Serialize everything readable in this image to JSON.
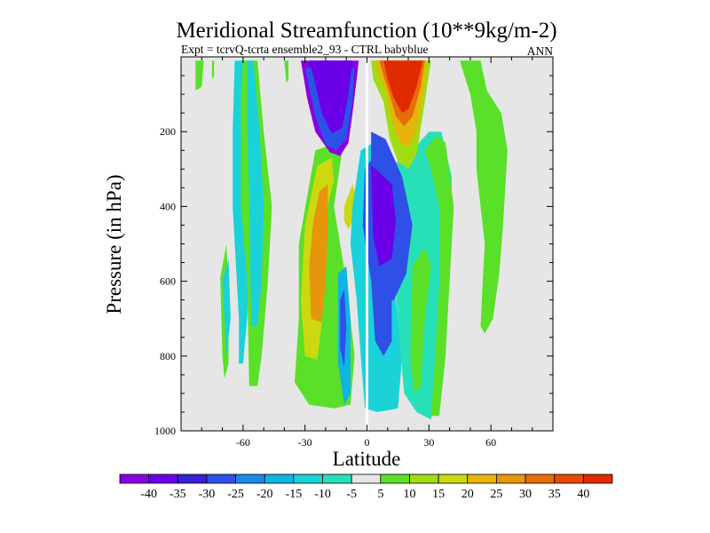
{
  "chart_data": {
    "type": "contour",
    "title": "Meridional Streamfunction (10**9kg/m-2)",
    "subtitle_left": "Expt = tcrvQ-tcrta ensemble2_93 - CTRL babyblue",
    "subtitle_right": "ANN",
    "xlabel": "Latitude",
    "ylabel": "Pressure (in hPa)",
    "xlim": [
      -90,
      90
    ],
    "ylim": [
      0,
      1000
    ],
    "y_inverted": true,
    "x_ticks": [
      -60,
      -30,
      0,
      30,
      60
    ],
    "x_tick_labels": [
      "-60",
      "-30",
      "0",
      "30",
      "60"
    ],
    "y_ticks": [
      200,
      400,
      600,
      800,
      1000
    ],
    "y_tick_labels": [
      "200",
      "400",
      "600",
      "800",
      "1000"
    ],
    "colorbar": {
      "labels": [
        "-40",
        "-35",
        "-30",
        "-25",
        "-20",
        "-15",
        "-10",
        "-5",
        "5",
        "10",
        "15",
        "20",
        "25",
        "30",
        "35",
        "40"
      ],
      "colors": [
        "#8a00e0",
        "#6a00e8",
        "#3a1ed8",
        "#2e50e6",
        "#1e88e8",
        "#10b4e0",
        "#1ad2d8",
        "#28e0b8",
        "#e6e6e6",
        "#5ae028",
        "#a2dc14",
        "#ccd810",
        "#e6b40a",
        "#e6960a",
        "#e66e06",
        "#e64a04",
        "#e02a00"
      ]
    },
    "background_color": "#e6e6e6",
    "regions": [
      {
        "name": "far-south-green-strip",
        "level": "5",
        "points": [
          [
            -83,
            10
          ],
          [
            -79,
            10
          ],
          [
            -80,
            80
          ],
          [
            -83,
            90
          ]
        ]
      },
      {
        "name": "south-green-sliver",
        "level": "5",
        "points": [
          [
            -75,
            10
          ],
          [
            -74,
            10
          ],
          [
            -74,
            50
          ],
          [
            -75,
            60
          ]
        ]
      },
      {
        "name": "south-cyan-column",
        "level": "-10",
        "points": [
          [
            -64,
            10
          ],
          [
            -59,
            10
          ],
          [
            -57,
            200
          ],
          [
            -56,
            400
          ],
          [
            -58,
            700
          ],
          [
            -60,
            820
          ],
          [
            -62,
            820
          ],
          [
            -62,
            700
          ],
          [
            -65,
            400
          ],
          [
            -65,
            200
          ]
        ]
      },
      {
        "name": "south-green-column",
        "level": "5",
        "points": [
          [
            -60,
            10
          ],
          [
            -53,
            10
          ],
          [
            -50,
            200
          ],
          [
            -46,
            400
          ],
          [
            -48,
            600
          ],
          [
            -51,
            800
          ],
          [
            -53,
            880
          ],
          [
            -57,
            880
          ],
          [
            -58,
            600
          ],
          [
            -61,
            400
          ],
          [
            -61,
            100
          ]
        ]
      },
      {
        "name": "south-cyan-inner",
        "level": "-10",
        "points": [
          [
            -58,
            10
          ],
          [
            -55,
            10
          ],
          [
            -52,
            200
          ],
          [
            -50,
            400
          ],
          [
            -51,
            600
          ],
          [
            -53,
            720
          ],
          [
            -56,
            720
          ],
          [
            -57,
            400
          ],
          [
            -58,
            150
          ]
        ]
      },
      {
        "name": "far-south-green-bottom",
        "level": "5",
        "points": [
          [
            -71,
            590
          ],
          [
            -68,
            500
          ],
          [
            -67,
            650
          ],
          [
            -67,
            820
          ],
          [
            -69,
            860
          ],
          [
            -70,
            800
          ]
        ]
      },
      {
        "name": "south-cyan-bottom",
        "level": "-10",
        "points": [
          [
            -70,
            600
          ],
          [
            -67,
            540
          ],
          [
            -66,
            700
          ],
          [
            -68,
            800
          ]
        ]
      },
      {
        "name": "mid-north-green-sliver",
        "level": "5",
        "points": [
          [
            -40,
            10
          ],
          [
            -38,
            10
          ],
          [
            -38,
            60
          ],
          [
            -39,
            70
          ]
        ]
      },
      {
        "name": "south-descending-green",
        "level": "5",
        "points": [
          [
            -25,
            250
          ],
          [
            -17,
            235
          ],
          [
            -12,
            250
          ],
          [
            -16,
            400
          ],
          [
            -10,
            600
          ],
          [
            -6,
            800
          ],
          [
            -8,
            930
          ],
          [
            -16,
            940
          ],
          [
            -28,
            930
          ],
          [
            -35,
            870
          ],
          [
            -33,
            700
          ],
          [
            -33,
            500
          ]
        ]
      },
      {
        "name": "south-descending-yellow",
        "level": "15",
        "points": [
          [
            -24,
            290
          ],
          [
            -17,
            270
          ],
          [
            -16,
            330
          ],
          [
            -20,
            420
          ],
          [
            -21,
            560
          ],
          [
            -22,
            720
          ],
          [
            -24,
            810
          ],
          [
            -30,
            800
          ],
          [
            -32,
            650
          ],
          [
            -30,
            450
          ]
        ]
      },
      {
        "name": "south-descending-orange",
        "level": "25",
        "points": [
          [
            -23,
            360
          ],
          [
            -19,
            340
          ],
          [
            -19,
            460
          ],
          [
            -20,
            600
          ],
          [
            -22,
            710
          ],
          [
            -27,
            700
          ],
          [
            -28,
            560
          ],
          [
            -26,
            440
          ]
        ]
      },
      {
        "name": "subtropical-yellow-blob",
        "level": "15",
        "points": [
          [
            -11,
            400
          ],
          [
            -7,
            340
          ],
          [
            -5,
            380
          ],
          [
            -7,
            440
          ],
          [
            -9,
            460
          ],
          [
            -11,
            440
          ]
        ]
      },
      {
        "name": "southern-cell-violet",
        "level": "-40",
        "points": [
          [
            -32,
            10
          ],
          [
            -4,
            10
          ],
          [
            -5,
            60
          ],
          [
            -7,
            150
          ],
          [
            -9,
            230
          ],
          [
            -13,
            265
          ],
          [
            -18,
            255
          ],
          [
            -25,
            200
          ],
          [
            -29,
            110
          ]
        ]
      },
      {
        "name": "southern-cell-blue",
        "level": "-25",
        "points": [
          [
            -30,
            30
          ],
          [
            -6,
            30
          ],
          [
            -7,
            120
          ],
          [
            -10,
            220
          ],
          [
            -15,
            250
          ],
          [
            -20,
            235
          ],
          [
            -25,
            160
          ]
        ]
      },
      {
        "name": "southern-cell-deep-violet",
        "level": "-35",
        "points": [
          [
            -28,
            10
          ],
          [
            -7,
            10
          ],
          [
            -9,
            100
          ],
          [
            -12,
            190
          ],
          [
            -17,
            205
          ],
          [
            -22,
            150
          ],
          [
            -25,
            70
          ]
        ]
      },
      {
        "name": "equatorial-teal-band",
        "level": "-10",
        "points": [
          [
            -3,
            250
          ],
          [
            3,
            230
          ],
          [
            8,
            350
          ],
          [
            12,
            500
          ],
          [
            14,
            650
          ],
          [
            17,
            800
          ],
          [
            15,
            940
          ],
          [
            5,
            950
          ],
          [
            -1,
            940
          ],
          [
            -3,
            800
          ],
          [
            -5,
            650
          ],
          [
            -8,
            500
          ],
          [
            -7,
            400
          ]
        ]
      },
      {
        "name": "equatorial-blue-band",
        "level": "-25",
        "points": [
          [
            -1,
            300
          ],
          [
            4,
            260
          ],
          [
            9,
            420
          ],
          [
            12,
            620
          ],
          [
            12,
            760
          ],
          [
            8,
            800
          ],
          [
            4,
            760
          ],
          [
            2,
            600
          ],
          [
            -2,
            450
          ]
        ]
      },
      {
        "name": "south-teal-low",
        "level": "-15",
        "points": [
          [
            -14,
            580
          ],
          [
            -10,
            560
          ],
          [
            -8,
            700
          ],
          [
            -8,
            900
          ],
          [
            -11,
            930
          ],
          [
            -14,
            820
          ]
        ]
      },
      {
        "name": "south-blue-low",
        "level": "-25",
        "points": [
          [
            -13,
            650
          ],
          [
            -11,
            620
          ],
          [
            -10,
            720
          ],
          [
            -11,
            830
          ],
          [
            -13,
            780
          ]
        ]
      },
      {
        "name": "northern-wide-cyan",
        "level": "-5",
        "points": [
          [
            8,
            310
          ],
          [
            22,
            250
          ],
          [
            30,
            200
          ],
          [
            36,
            200
          ],
          [
            41,
            320
          ],
          [
            41,
            500
          ],
          [
            36,
            680
          ],
          [
            35,
            850
          ],
          [
            31,
            970
          ],
          [
            24,
            950
          ],
          [
            18,
            900
          ],
          [
            15,
            700
          ],
          [
            12,
            500
          ]
        ]
      },
      {
        "name": "northern-green-edge",
        "level": "5",
        "points": [
          [
            28,
            250
          ],
          [
            34,
            210
          ],
          [
            38,
            230
          ],
          [
            42,
            400
          ],
          [
            40,
            600
          ],
          [
            38,
            800
          ],
          [
            35,
            960
          ],
          [
            31,
            960
          ],
          [
            33,
            800
          ],
          [
            35,
            600
          ],
          [
            35,
            400
          ],
          [
            31,
            300
          ]
        ]
      },
      {
        "name": "northern-cell-violet",
        "level": "-40",
        "points": [
          [
            2,
            250
          ],
          [
            12,
            300
          ],
          [
            18,
            380
          ],
          [
            18,
            500
          ],
          [
            15,
            580
          ],
          [
            9,
            620
          ],
          [
            4,
            600
          ],
          [
            2,
            400
          ]
        ]
      },
      {
        "name": "northern-cell-blue",
        "level": "-25",
        "points": [
          [
            2,
            200
          ],
          [
            9,
            220
          ],
          [
            17,
            320
          ],
          [
            22,
            450
          ],
          [
            19,
            580
          ],
          [
            13,
            650
          ],
          [
            7,
            660
          ],
          [
            3,
            620
          ],
          [
            2,
            400
          ]
        ]
      },
      {
        "name": "northern-cell-deep",
        "level": "-35",
        "points": [
          [
            2,
            290
          ],
          [
            12,
            340
          ],
          [
            14,
            440
          ],
          [
            12,
            540
          ],
          [
            6,
            560
          ],
          [
            3,
            480
          ]
        ]
      },
      {
        "name": "northern-hot-cell-outer",
        "level": "10",
        "points": [
          [
            2,
            10
          ],
          [
            31,
            10
          ],
          [
            28,
            120
          ],
          [
            24,
            260
          ],
          [
            20,
            300
          ],
          [
            15,
            280
          ],
          [
            11,
            220
          ],
          [
            8,
            120
          ],
          [
            3,
            60
          ]
        ]
      },
      {
        "name": "northern-hot-cell-yellow",
        "level": "20",
        "points": [
          [
            4,
            10
          ],
          [
            29,
            10
          ],
          [
            27,
            100
          ],
          [
            24,
            200
          ],
          [
            20,
            240
          ],
          [
            16,
            230
          ],
          [
            12,
            170
          ],
          [
            9,
            90
          ],
          [
            5,
            40
          ]
        ]
      },
      {
        "name": "northern-hot-cell-orange",
        "level": "30",
        "points": [
          [
            6,
            10
          ],
          [
            28,
            10
          ],
          [
            26,
            80
          ],
          [
            22,
            160
          ],
          [
            18,
            185
          ],
          [
            14,
            160
          ],
          [
            11,
            100
          ],
          [
            8,
            50
          ]
        ]
      },
      {
        "name": "northern-hot-cell-red",
        "level": "40",
        "points": [
          [
            8,
            10
          ],
          [
            27,
            10
          ],
          [
            24,
            80
          ],
          [
            20,
            140
          ],
          [
            17,
            150
          ],
          [
            13,
            110
          ],
          [
            10,
            60
          ]
        ]
      },
      {
        "name": "northern-green-tongue",
        "level": "5",
        "points": [
          [
            22,
            560
          ],
          [
            28,
            510
          ],
          [
            31,
            560
          ],
          [
            28,
            700
          ],
          [
            26,
            880
          ],
          [
            23,
            900
          ],
          [
            21,
            800
          ]
        ]
      },
      {
        "name": "high-latitude-green",
        "level": "5",
        "points": [
          [
            45,
            10
          ],
          [
            55,
            10
          ],
          [
            58,
            90
          ],
          [
            65,
            150
          ],
          [
            68,
            250
          ],
          [
            66,
            440
          ],
          [
            64,
            580
          ],
          [
            61,
            700
          ],
          [
            57,
            740
          ],
          [
            55,
            720
          ],
          [
            56,
            600
          ],
          [
            57,
            500
          ],
          [
            55,
            400
          ],
          [
            53,
            300
          ],
          [
            53,
            200
          ],
          [
            50,
            100
          ],
          [
            46,
            30
          ]
        ]
      }
    ]
  }
}
